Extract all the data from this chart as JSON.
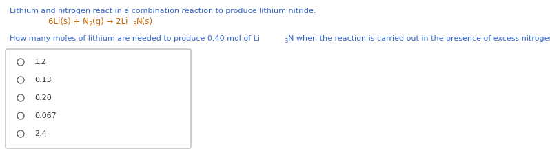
{
  "title_line": "Lithium and nitrogen react in a combination reaction to produce lithium nitride:",
  "title_color": "#3366cc",
  "eq_color": "#cc6600",
  "question_color": "#3366cc",
  "answer_color": "#333333",
  "options": [
    "1.2",
    "0.13",
    "0.20",
    "0.067",
    "2.4"
  ],
  "background_color": "#ffffff",
  "font_size": 8.0,
  "sub_font_size": 6.0,
  "eq_font_size": 8.5,
  "eq_sub_font_size": 6.5,
  "option_font_size": 8.0,
  "circle_color": "#555555",
  "box_edge_color": "#aaaaaa"
}
